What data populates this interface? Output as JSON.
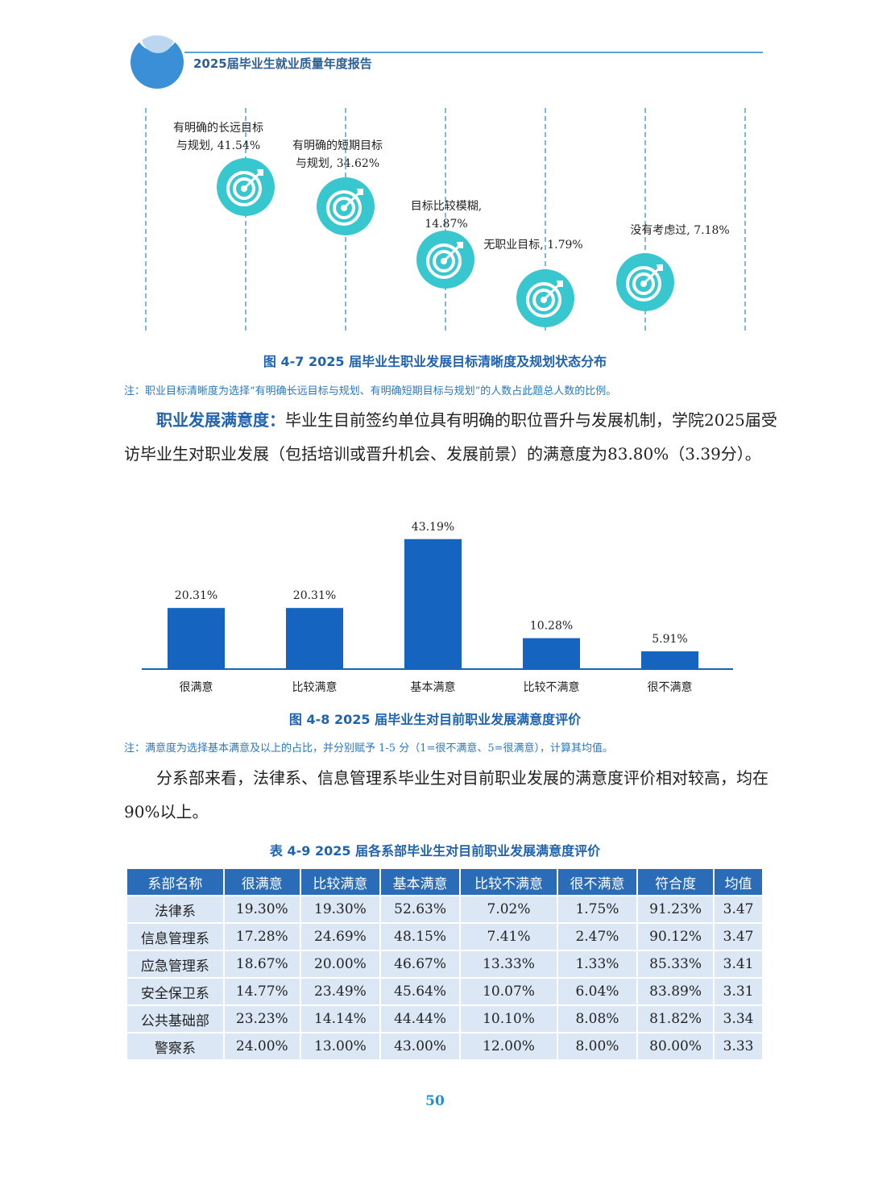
{
  "header": {
    "title": "2025届毕业生就业质量年度报告"
  },
  "figure_goals": {
    "caption": "图 4-7  2025 届毕业生职业发展目标清晰度及规划状态分布",
    "note": "注：职业目标清晰度为选择“有明确长远目标与规划、有明确短期目标与规划”的人数占此题总人数的比例。",
    "items": [
      {
        "line1": "有明确的长远目标",
        "line2": "与规划, 41.54%",
        "value": 41.54
      },
      {
        "line1": "有明确的短期目标",
        "line2": "与规划, 34.62%",
        "value": 34.62
      },
      {
        "line1": "目标比较模糊,",
        "line2": "14.87%",
        "value": 14.87
      },
      {
        "line1": "无职业目标, 1.79%",
        "line2": "",
        "value": 1.79
      },
      {
        "line1": "没有考虑过, 7.18%",
        "line2": "",
        "value": 7.18
      }
    ]
  },
  "para1": {
    "keyword": "职业发展满意度：",
    "text": "毕业生目前签约单位具有明确的职位晋升与发展机制，学院2025届受访毕业生对职业发展（包括培训或晋升机会、发展前景）的满意度为83.80%（3.39分）。"
  },
  "chart_data": {
    "type": "bar",
    "categories": [
      "很满意",
      "比较满意",
      "基本满意",
      "比较不满意",
      "很不满意"
    ],
    "values": [
      20.31,
      20.31,
      43.19,
      10.28,
      5.91
    ],
    "labels": [
      "20.31%",
      "20.31%",
      "43.19%",
      "10.28%",
      "5.91%"
    ],
    "color": "#1565c0",
    "title": "",
    "ylim": [
      0,
      45
    ]
  },
  "figure_satisfaction": {
    "caption": "图 4-8  2025 届毕业生对目前职业发展满意度评价",
    "note": "注：满意度为选择基本满意及以上的占比，并分别赋予 1-5 分（1=很不满意、5=很满意），计算其均值。"
  },
  "para2": {
    "text": "分系部来看，法律系、信息管理系毕业生对目前职业发展的满意度评价相对较高，均在 90%以上。"
  },
  "table": {
    "caption": "表 4-9  2025 届各系部毕业生对目前职业发展满意度评价",
    "headers": [
      "系部名称",
      "很满意",
      "比较满意",
      "基本满意",
      "比较不满意",
      "很不满意",
      "符合度",
      "均值"
    ],
    "rows": [
      [
        "法律系",
        "19.30%",
        "19.30%",
        "52.63%",
        "7.02%",
        "1.75%",
        "91.23%",
        "3.47"
      ],
      [
        "信息管理系",
        "17.28%",
        "24.69%",
        "48.15%",
        "7.41%",
        "2.47%",
        "90.12%",
        "3.47"
      ],
      [
        "应急管理系",
        "18.67%",
        "20.00%",
        "46.67%",
        "13.33%",
        "1.33%",
        "85.33%",
        "3.41"
      ],
      [
        "安全保卫系",
        "14.77%",
        "23.49%",
        "45.64%",
        "10.07%",
        "6.04%",
        "83.89%",
        "3.31"
      ],
      [
        "公共基础部",
        "23.23%",
        "14.14%",
        "44.44%",
        "10.10%",
        "8.08%",
        "81.82%",
        "3.34"
      ],
      [
        "警察系",
        "24.00%",
        "13.00%",
        "43.00%",
        "12.00%",
        "8.00%",
        "80.00%",
        "3.33"
      ]
    ]
  },
  "page_number": "50"
}
